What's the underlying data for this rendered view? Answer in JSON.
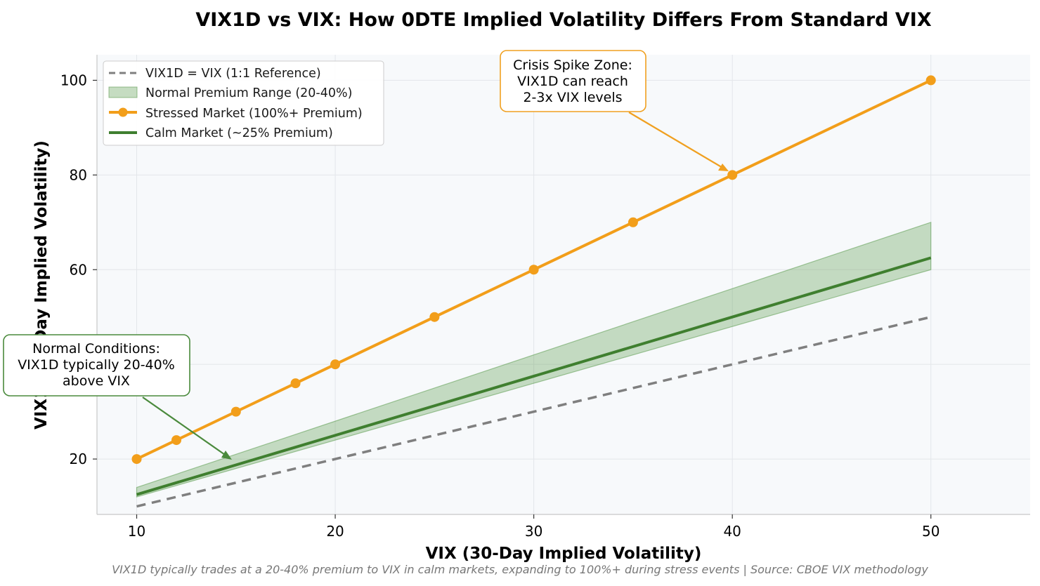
{
  "chart_data": {
    "type": "line",
    "title": "VIX1D vs VIX: How 0DTE Implied Volatility Differs From Standard VIX",
    "xlabel": "VIX (30-Day Implied Volatility)",
    "ylabel": "VIX1D (1-Day Implied Volatility)",
    "xlim": [
      8,
      55
    ],
    "ylim": [
      8.3,
      105.4
    ],
    "xticks": [
      10,
      20,
      30,
      40,
      50
    ],
    "yticks": [
      20,
      40,
      60,
      80,
      100
    ],
    "grid": true,
    "legend_placement": "upper-left",
    "series": [
      {
        "name": "VIX1D = VIX (1:1 Reference)",
        "style": "dashed",
        "color": "#7f7f7f",
        "x": [
          10,
          50
        ],
        "y": [
          10,
          50
        ]
      },
      {
        "name": "Stressed Market (100%+ Premium)",
        "style": "line-markers",
        "color": "#f29e1a",
        "x": [
          10,
          12,
          15,
          18,
          20,
          25,
          30,
          35,
          40,
          50
        ],
        "y": [
          20,
          24,
          30,
          36,
          40,
          50,
          60,
          70,
          80,
          100
        ]
      },
      {
        "name": "Calm Market (~25% Premium)",
        "style": "solid",
        "color": "#3f7f2f",
        "x": [
          10,
          50
        ],
        "y": [
          12.5,
          62.5
        ]
      }
    ],
    "band": {
      "name": "Normal Premium Range (20-40%)",
      "color": "#5a9a4c",
      "x": [
        10,
        50
      ],
      "lower": [
        12,
        60
      ],
      "upper": [
        14,
        70
      ]
    },
    "annotations": [
      {
        "text": [
          "Crisis Spike Zone:",
          "VIX1D can reach",
          "2-3x VIX levels"
        ],
        "target": [
          40,
          80
        ],
        "color": "#f0a020"
      },
      {
        "text": [
          "Normal Conditions:",
          "VIX1D typically 20-40%",
          "above VIX"
        ],
        "target": [
          15,
          18.8
        ],
        "color": "#4a8a3c"
      }
    ],
    "footnote": "VIX1D typically trades at a 20-40% premium to VIX in calm markets, expanding to 100%+ during stress events | Source: CBOE VIX methodology"
  }
}
